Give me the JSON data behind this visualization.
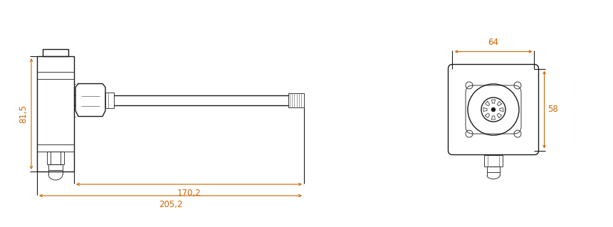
{
  "bg_color": "#ffffff",
  "line_color": "#1a1a1a",
  "dim_color": "#cc6600",
  "gray": "#777777",
  "fig_width": 8.62,
  "fig_height": 3.19,
  "dpi": 100,
  "dim_81_5": "81,5",
  "dim_170_2": "170,2",
  "dim_205_2": "205,2",
  "dim_64": "64",
  "dim_58": "58"
}
